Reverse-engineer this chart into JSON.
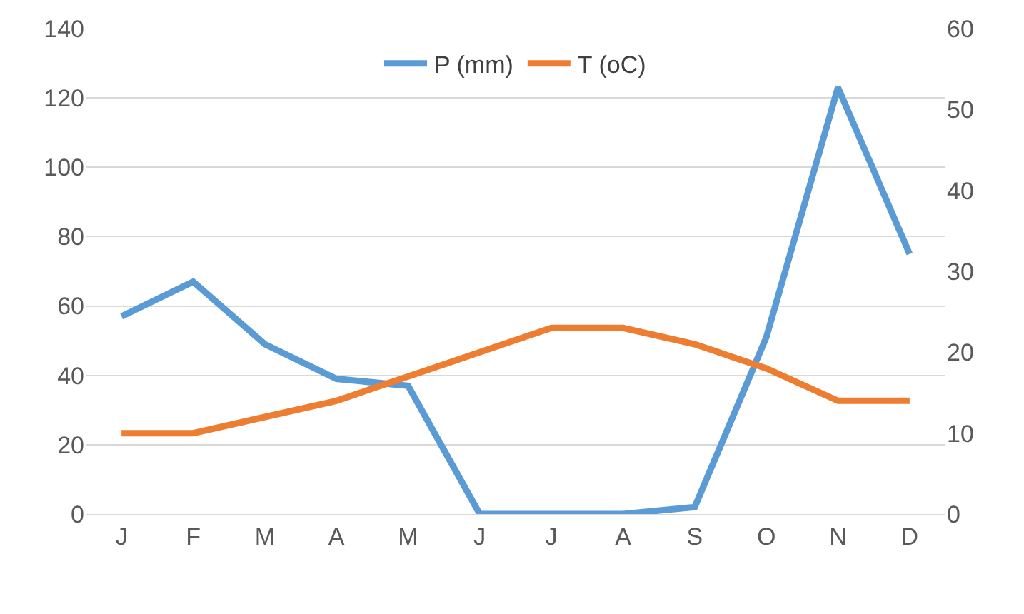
{
  "chart_data": {
    "type": "line",
    "categories": [
      "J",
      "F",
      "M",
      "A",
      "M",
      "J",
      "J",
      "A",
      "S",
      "O",
      "N",
      "D"
    ],
    "series": [
      {
        "name": "P (mm)",
        "color": "#5b9bd5",
        "values": [
          57,
          67,
          49,
          39,
          37,
          0,
          0,
          0,
          2,
          51,
          123,
          75
        ]
      },
      {
        "name": "T (oC)",
        "color": "#ed7d31",
        "axis": "y2",
        "values": [
          10,
          10,
          12,
          14,
          17,
          20,
          23,
          23,
          21,
          18,
          14,
          14
        ]
      }
    ],
    "ylim": [
      0,
      140
    ],
    "yticks": [
      0,
      20,
      40,
      60,
      80,
      100,
      120,
      140
    ],
    "y2lim": [
      0,
      60
    ],
    "y2ticks": [
      0,
      10,
      20,
      30,
      40,
      50,
      60
    ],
    "grid": "y",
    "legend": "top",
    "marker": "none",
    "line_style": "solid"
  }
}
